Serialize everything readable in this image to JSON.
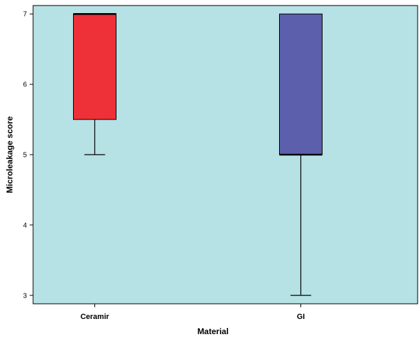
{
  "chart_data": {
    "type": "box",
    "title": "",
    "xlabel": "Material",
    "ylabel": "Microleakage score",
    "ylim": [
      2.88,
      7.12
    ],
    "yticks": [
      "3",
      "4",
      "5",
      "6",
      "7"
    ],
    "grid": false,
    "categories": [
      "Ceramir",
      "GI"
    ],
    "boxes": [
      {
        "category": "Ceramir",
        "min": 5,
        "q1": 5.5,
        "median": 7,
        "q3": 7,
        "max": 7,
        "color": "#ee3038"
      },
      {
        "category": "GI",
        "min": 3,
        "q1": 5,
        "median": 5,
        "q3": 7,
        "max": 7,
        "color": "#5c5fac"
      }
    ],
    "background_color": "#b6e1e5"
  }
}
